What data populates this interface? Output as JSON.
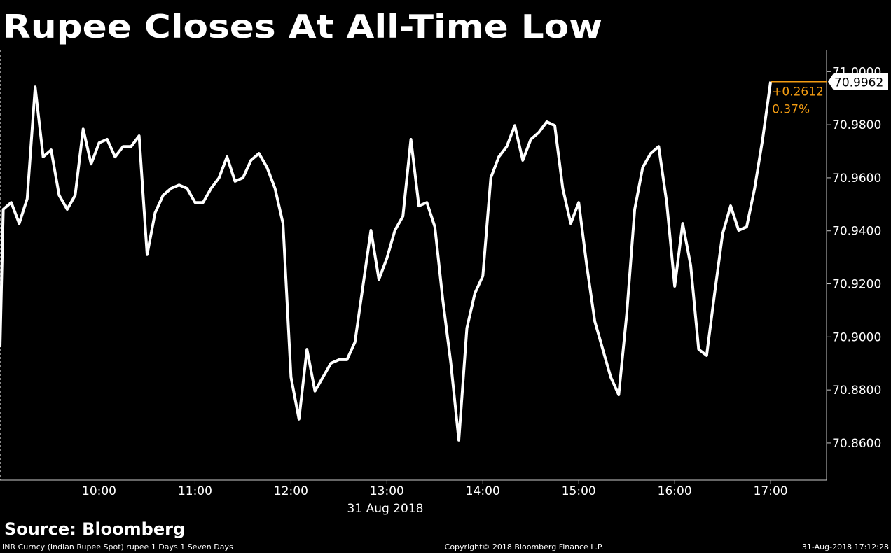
{
  "chart_data": {
    "type": "line",
    "title": "Rupee Closes At All-Time Low",
    "color": "#ffffff",
    "x": [
      "08:58",
      "09:00",
      "09:05",
      "09:10",
      "09:15",
      "09:20",
      "09:25",
      "09:30",
      "09:35",
      "09:40",
      "09:45",
      "09:50",
      "09:55",
      "10:00",
      "10:05",
      "10:10",
      "10:15",
      "10:20",
      "10:25",
      "10:30",
      "10:35",
      "10:40",
      "10:45",
      "10:50",
      "10:55",
      "11:00",
      "11:05",
      "11:10",
      "11:15",
      "11:20",
      "11:25",
      "11:30",
      "11:35",
      "11:40",
      "11:45",
      "11:50",
      "11:55",
      "12:00",
      "12:05",
      "12:10",
      "12:15",
      "12:20",
      "12:25",
      "12:30",
      "12:35",
      "12:40",
      "12:45",
      "12:50",
      "12:55",
      "13:00",
      "13:05",
      "13:10",
      "13:15",
      "13:20",
      "13:25",
      "13:30",
      "13:35",
      "13:40",
      "13:45",
      "13:50",
      "13:55",
      "14:00",
      "14:05",
      "14:10",
      "14:15",
      "14:20",
      "14:25",
      "14:30",
      "14:35",
      "14:40",
      "14:45",
      "14:50",
      "14:55",
      "15:00",
      "15:05",
      "15:10",
      "15:15",
      "15:20",
      "15:25",
      "15:30",
      "15:35",
      "15:40",
      "15:45",
      "15:50",
      "15:55",
      "16:00",
      "16:05",
      "16:10",
      "16:15",
      "16:20",
      "16:25",
      "16:30",
      "16:35",
      "16:40",
      "16:45",
      "16:50",
      "16:55",
      "17:00"
    ],
    "values": [
      70.8961,
      70.9481,
      70.9507,
      70.9428,
      70.9521,
      70.9942,
      70.9679,
      70.9705,
      70.9534,
      70.9481,
      70.9534,
      70.9784,
      70.9652,
      70.9732,
      70.9745,
      70.9679,
      70.9718,
      70.9718,
      70.9758,
      70.931,
      70.9468,
      70.9534,
      70.956,
      70.9573,
      70.956,
      70.9507,
      70.9507,
      70.956,
      70.96,
      70.9679,
      70.9587,
      70.96,
      70.9666,
      70.9692,
      70.9639,
      70.956,
      70.9428,
      70.8848,
      70.869,
      70.8953,
      70.8796,
      70.8848,
      70.8901,
      70.8914,
      70.8914,
      70.898,
      70.9191,
      70.9402,
      70.9217,
      70.9296,
      70.9402,
      70.9455,
      70.9745,
      70.9494,
      70.9507,
      70.9415,
      70.9138,
      70.8901,
      70.8611,
      70.9033,
      70.9164,
      70.923,
      70.96,
      70.9679,
      70.9718,
      70.9797,
      70.9666,
      70.9745,
      70.9771,
      70.9811,
      70.9797,
      70.956,
      70.9428,
      70.9507,
      70.927,
      70.9059,
      70.8953,
      70.8848,
      70.8782,
      70.9085,
      70.9481,
      70.9639,
      70.9692,
      70.9718,
      70.9507,
      70.9191,
      70.9428,
      70.927,
      70.8953,
      70.893,
      70.9164,
      70.9389,
      70.9494,
      70.9402,
      70.9415,
      70.956,
      70.9745,
      70.9962
    ],
    "xlim": [
      "08:58",
      "17:35"
    ],
    "xticks": [
      "10:00",
      "11:00",
      "12:00",
      "13:00",
      "14:00",
      "15:00",
      "16:00",
      "17:00"
    ],
    "date_label": "31 Aug 2018",
    "ylim": [
      70.846,
      71.008
    ],
    "yticks": [
      {
        "value": 70.86,
        "label": "70.8600"
      },
      {
        "value": 70.88,
        "label": "70.8800"
      },
      {
        "value": 70.9,
        "label": "70.9000"
      },
      {
        "value": 70.92,
        "label": "70.9200"
      },
      {
        "value": 70.94,
        "label": "70.9400"
      },
      {
        "value": 70.96,
        "label": "70.9600"
      },
      {
        "value": 70.98,
        "label": "70.9800"
      },
      {
        "value": 71,
        "label": "71.0000"
      }
    ],
    "change": "+0.2612",
    "change_pct": "0.37%",
    "change_color": "#f39c12"
  },
  "footer": {
    "source": "Source: Bloomberg",
    "description": "INR Curncy (Indian Rupee Spot) rupee 1 Days 1 Seven Days",
    "copyright": "Copyright© 2018 Bloomberg Finance L.P.",
    "timestamp": "31-Aug-2018 17:12:28"
  }
}
